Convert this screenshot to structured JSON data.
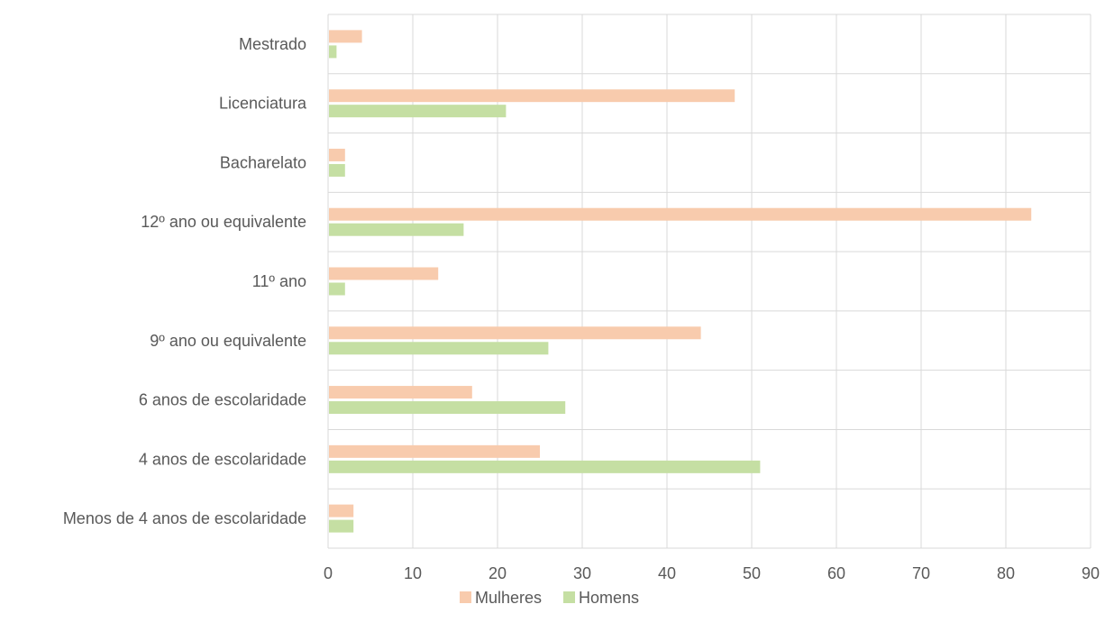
{
  "chart_data": {
    "type": "bar",
    "orientation": "horizontal",
    "title": "",
    "xlabel": "",
    "ylabel": "",
    "xlim": [
      0,
      90
    ],
    "x_ticks": [
      0,
      10,
      20,
      30,
      40,
      50,
      60,
      70,
      80,
      90
    ],
    "grid": true,
    "legend_position": "bottom",
    "categories": [
      "Mestrado",
      "Licenciatura",
      "Bacharelato",
      "12º  ano ou equivalente",
      "11º ano",
      "9º ano ou equivalente",
      "6 anos de escolaridade",
      "4 anos de escolaridade",
      "Menos  de 4 anos de escolaridade"
    ],
    "series": [
      {
        "name": "Mulheres",
        "color": "#F8CBAD",
        "values": [
          4,
          48,
          2,
          83,
          13,
          44,
          17,
          25,
          3
        ]
      },
      {
        "name": "Homens",
        "color": "#C5DFA3",
        "values": [
          1,
          21,
          2,
          16,
          2,
          26,
          28,
          51,
          3
        ]
      }
    ]
  }
}
